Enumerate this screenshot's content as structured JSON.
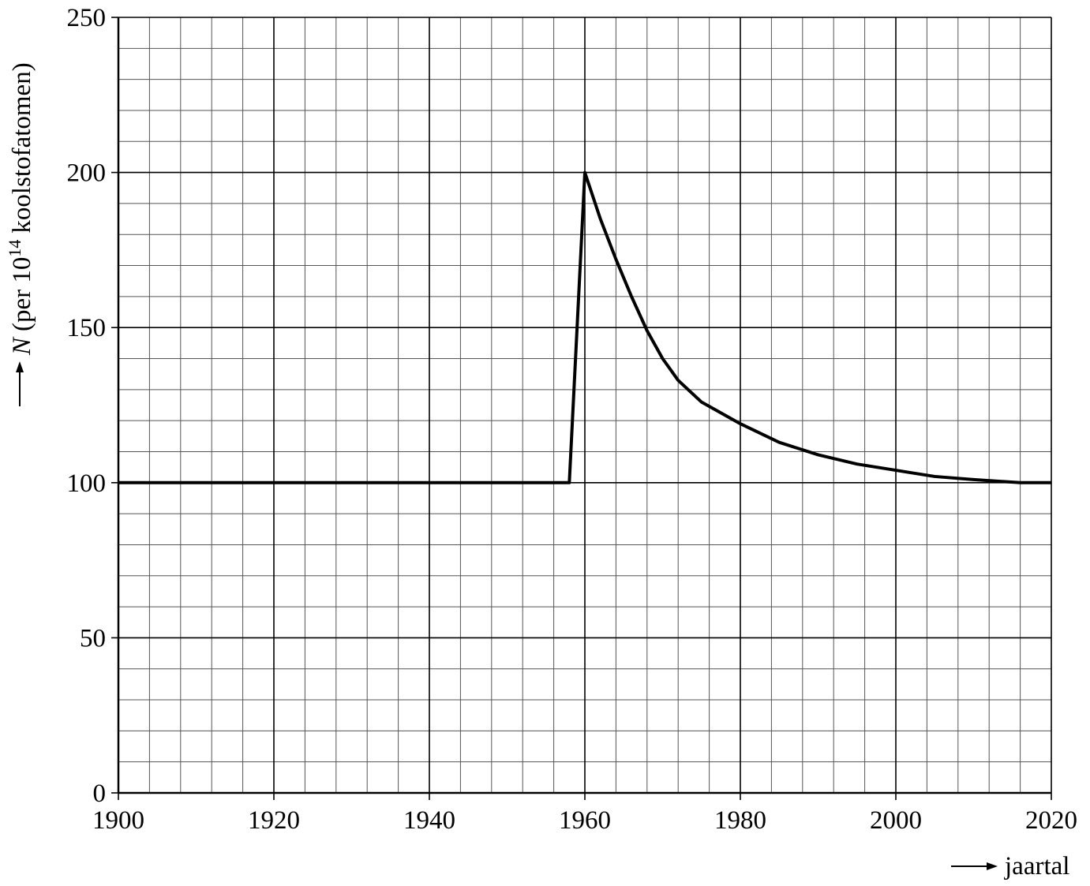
{
  "chart_data": {
    "type": "line",
    "xlabel": "jaartal",
    "ylabel": {
      "symbol": "N",
      "text_before": "(per 10",
      "exponent": "14",
      "text_after": "koolstofatomen)"
    },
    "x": [
      1900,
      1958,
      1960,
      1962,
      1964,
      1966,
      1968,
      1970,
      1972,
      1975,
      1980,
      1985,
      1990,
      1995,
      2000,
      2005,
      2010,
      2016,
      2020
    ],
    "series": [
      {
        "color": "#000000",
        "values": [
          100,
          100,
          200,
          185,
          172,
          160,
          149,
          140,
          133,
          126,
          119,
          113,
          109,
          106,
          104,
          102,
          101,
          100,
          100
        ]
      }
    ],
    "xlim": [
      1900,
      2020
    ],
    "ylim": [
      0,
      250
    ],
    "xticks": [
      1900,
      1920,
      1940,
      1960,
      1980,
      2000,
      2020
    ],
    "yticks": [
      0,
      50,
      100,
      150,
      200,
      250
    ],
    "grid": true,
    "minor_grid_step": [
      4,
      10
    ]
  }
}
